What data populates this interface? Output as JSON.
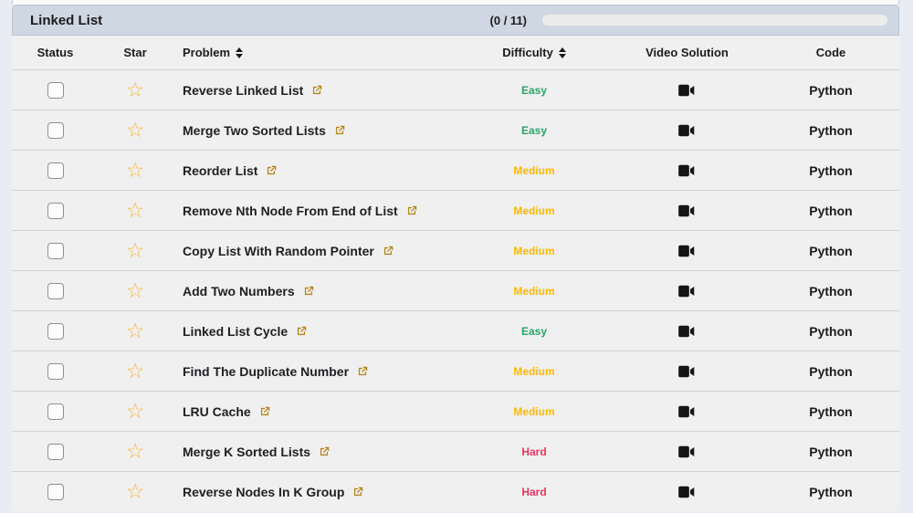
{
  "header": {
    "title": "Linked List",
    "progress_count": "(0 / 11)",
    "progress_percent": 0
  },
  "table": {
    "columns": {
      "status": "Status",
      "star": "Star",
      "problem": "Problem",
      "difficulty": "Difficulty",
      "video": "Video Solution",
      "code": "Code"
    },
    "code_label": "Python",
    "rows": [
      {
        "problem": "Reverse Linked List",
        "difficulty": "Easy"
      },
      {
        "problem": "Merge Two Sorted Lists",
        "difficulty": "Easy"
      },
      {
        "problem": "Reorder List",
        "difficulty": "Medium"
      },
      {
        "problem": "Remove Nth Node From End of List",
        "difficulty": "Medium"
      },
      {
        "problem": "Copy List With Random Pointer",
        "difficulty": "Medium"
      },
      {
        "problem": "Add Two Numbers",
        "difficulty": "Medium"
      },
      {
        "problem": "Linked List Cycle",
        "difficulty": "Easy"
      },
      {
        "problem": "Find The Duplicate Number",
        "difficulty": "Medium"
      },
      {
        "problem": "LRU Cache",
        "difficulty": "Medium"
      },
      {
        "problem": "Merge K Sorted Lists",
        "difficulty": "Hard"
      },
      {
        "problem": "Reverse Nodes In K Group",
        "difficulty": "Hard"
      }
    ]
  },
  "icons": {
    "star": "☆",
    "star_name": "star-icon",
    "external_link_name": "external-link-icon",
    "camera_name": "video-camera-icon",
    "sort_name": "sort-icon"
  },
  "colors": {
    "easy": "#29a566",
    "medium": "#ffb800",
    "hard": "#e5365e",
    "star": "#f5b942",
    "link_icon": "#b3881c",
    "header_bg": "#cfd7e2",
    "row_bg": "#f0f0f0"
  }
}
